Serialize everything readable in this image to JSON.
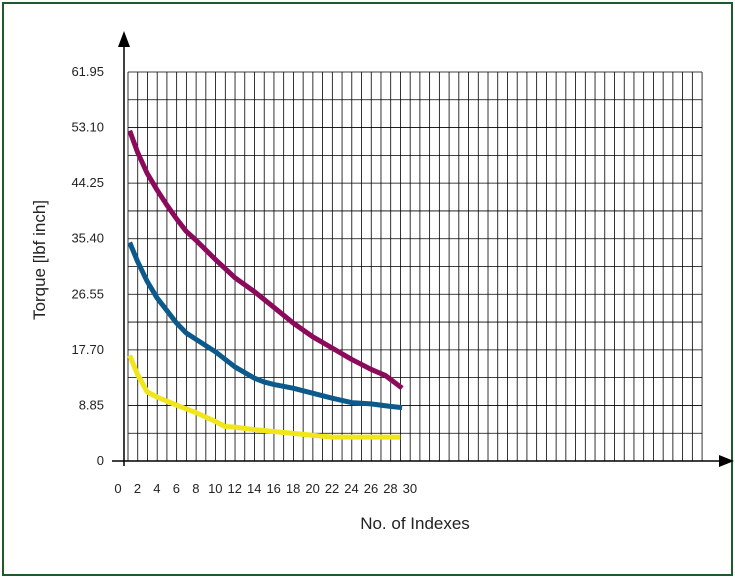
{
  "chart_data": {
    "type": "line",
    "title": "",
    "xlabel": "No. of Indexes",
    "ylabel": "Torque [lbf inch]",
    "xlim": [
      0,
      30
    ],
    "ylim": [
      0,
      61.95
    ],
    "x_ticks": [
      "0",
      "2",
      "4",
      "6",
      "8",
      "10",
      "12",
      "14",
      "16",
      "18",
      "20",
      "22",
      "24",
      "26",
      "28",
      "30"
    ],
    "y_ticks": [
      "0",
      "8.85",
      "17.70",
      "26.55",
      "35.40",
      "44.25",
      "53.10",
      "61.95"
    ],
    "grid": true,
    "legend": "none",
    "series": [
      {
        "color": "#8b0a5c",
        "x": [
          1.2,
          2,
          3,
          4,
          5,
          6,
          7,
          8,
          10,
          12,
          14,
          16,
          18,
          20,
          22,
          24,
          26,
          27.5,
          29.2
        ],
        "y": [
          52.6,
          49.2,
          45.8,
          43.2,
          40.8,
          38.6,
          36.6,
          35.2,
          32.1,
          29.2,
          27.0,
          24.5,
          22.0,
          19.8,
          18.0,
          16.2,
          14.6,
          13.6,
          11.6
        ]
      },
      {
        "color": "#0c5a8c",
        "x": [
          1.2,
          2,
          3,
          4,
          5,
          6,
          7,
          8,
          10,
          12,
          14,
          15,
          16,
          18,
          20,
          22,
          24,
          26,
          28,
          29.2
        ],
        "y": [
          34.8,
          31.8,
          28.6,
          26.0,
          24.0,
          22.0,
          20.4,
          19.4,
          17.4,
          15.0,
          13.2,
          12.6,
          12.2,
          11.6,
          10.8,
          10.0,
          9.3,
          9.1,
          8.7,
          8.5
        ]
      },
      {
        "color": "#f0e61a",
        "x": [
          1.2,
          2,
          3,
          4,
          6,
          8,
          10,
          11,
          12,
          14,
          16,
          18,
          20,
          22,
          24,
          26,
          29
        ],
        "y": [
          16.8,
          13.8,
          11.0,
          10.2,
          8.9,
          7.7,
          6.3,
          5.5,
          5.4,
          5.0,
          4.7,
          4.4,
          4.1,
          3.8,
          3.8,
          3.8,
          3.8
        ]
      }
    ]
  }
}
